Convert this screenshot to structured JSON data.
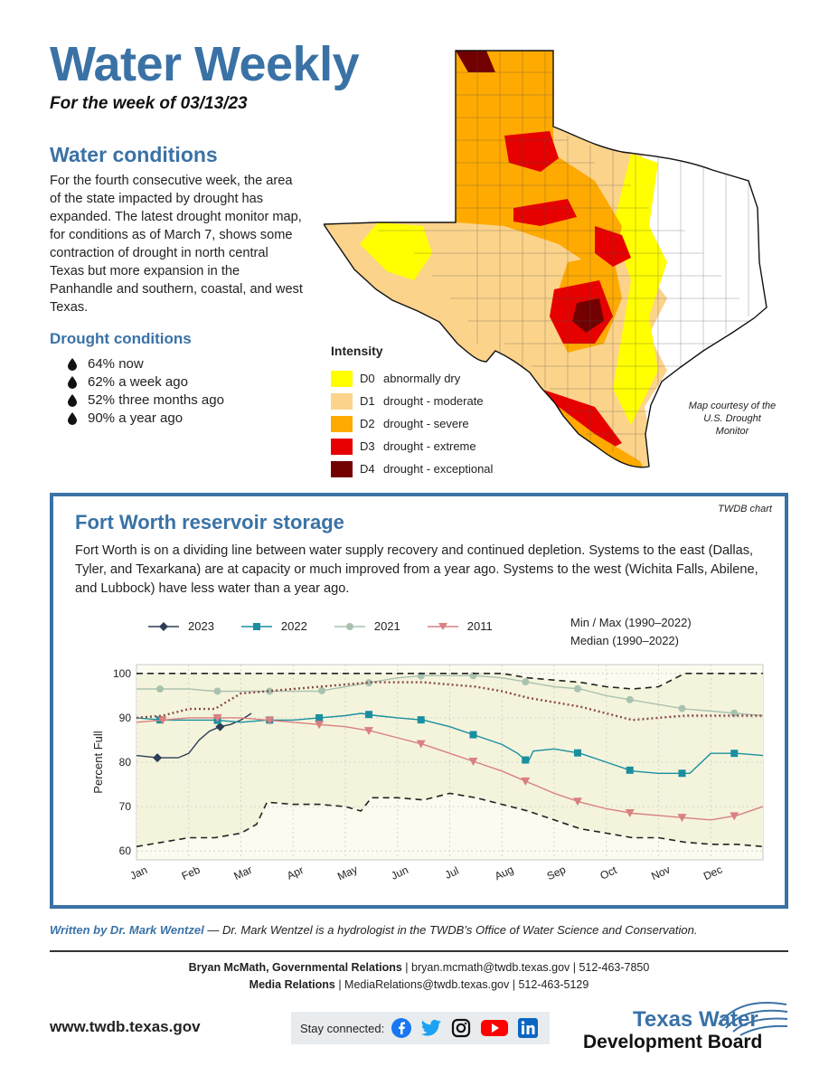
{
  "header": {
    "title": "Water Weekly",
    "subtitle": "For the week of 03/13/23"
  },
  "water_conditions": {
    "heading": "Water conditions",
    "body": "For the fourth consecutive week, the area of the state impacted by drought has expanded. The latest drought monitor map, for conditions as of March 7, shows some contraction of drought in north central Texas but more expansion in the Panhandle and southern, coastal, and west Texas."
  },
  "drought_conditions": {
    "heading": "Drought conditions",
    "items": [
      "64% now",
      "62% a week ago",
      "52% three months ago",
      "90% a year ago"
    ]
  },
  "map": {
    "legend_title": "Intensity",
    "legend": [
      {
        "code": "D0",
        "label": "abnormally dry",
        "color": "#ffff00"
      },
      {
        "code": "D1",
        "label": "drought - moderate",
        "color": "#fcd38a"
      },
      {
        "code": "D2",
        "label": "drought - severe",
        "color": "#ffaa00"
      },
      {
        "code": "D3",
        "label": "drought - extreme",
        "color": "#e60000"
      },
      {
        "code": "D4",
        "label": "drought - exceptional",
        "color": "#730000"
      }
    ],
    "credit": "Map courtesy of the U.S. Drought Monitor"
  },
  "reservoir": {
    "chart_source": "TWDB chart",
    "heading": "Fort Worth reservoir storage",
    "body": "Fort Worth is on a dividing line between water supply recovery and continued depletion. Systems to the east (Dallas, Tyler, and Texarkana) are at capacity or much improved from a year ago. Systems to the west (Wichita Falls, Abilene, and Lubbock) have less water than a year ago.",
    "minmax_label": "Min / Max (1990–2022)",
    "median_label": "Median (1990–2022)"
  },
  "chart_data": {
    "type": "line",
    "title": "",
    "xlabel": "",
    "ylabel": "Percent Full",
    "ylim": [
      58,
      102
    ],
    "x_ticks": [
      "Jan",
      "Feb",
      "Mar",
      "Apr",
      "May",
      "Jun",
      "Jul",
      "Aug",
      "Sep",
      "Oct",
      "Nov",
      "Dec"
    ],
    "y_ticks": [
      60,
      70,
      80,
      90,
      100
    ],
    "xlim": [
      0,
      12
    ],
    "series": [
      {
        "name": "2023",
        "color": "#2c3e55",
        "marker": "diamond",
        "x": [
          0,
          0.4,
          0.8,
          1.0,
          1.2,
          1.4,
          1.6,
          1.8,
          2.0,
          2.2
        ],
        "y": [
          81.5,
          81,
          81,
          82,
          85,
          87,
          88,
          88.5,
          89.5,
          91
        ],
        "markers_at": [
          0.4,
          1.6
        ]
      },
      {
        "name": "2022",
        "color": "#1a8fa0",
        "marker": "square",
        "x": [
          0,
          0.5,
          1,
          1.5,
          2,
          2.5,
          3,
          3.5,
          4,
          4.3,
          4.6,
          5,
          5.5,
          6,
          6.5,
          7,
          7.3,
          7.5,
          7.6,
          8,
          8.5,
          9,
          9.5,
          10,
          10.5,
          10.6,
          11,
          11.5,
          12
        ],
        "y": [
          90,
          89.5,
          89.5,
          89.5,
          89,
          89.5,
          89.5,
          90,
          90.5,
          91,
          90.5,
          90,
          89.5,
          88,
          86,
          84,
          82,
          80,
          82.5,
          83,
          82,
          80,
          78,
          77.5,
          77.5,
          77.5,
          82,
          82,
          81.5
        ],
        "markers_at": [
          0.45,
          1.55,
          2.55,
          3.5,
          4.45,
          5.45,
          6.45,
          7.45,
          8.45,
          9.45,
          10.45,
          11.45
        ]
      },
      {
        "name": "2021",
        "color": "#a9c2b0",
        "marker": "circle",
        "x": [
          0,
          0.5,
          1,
          1.5,
          2,
          2.5,
          3,
          3.5,
          4,
          4.5,
          5,
          5.5,
          6,
          6.5,
          7,
          7.5,
          8,
          8.5,
          9,
          9.5,
          10,
          10.5,
          11,
          11.5,
          12
        ],
        "y": [
          96.5,
          96.5,
          96.5,
          96,
          96,
          96,
          96,
          96,
          97,
          98,
          99,
          99.5,
          99.5,
          99.5,
          99,
          98,
          97,
          96.5,
          95,
          94,
          93,
          92,
          91.5,
          91,
          90.5
        ],
        "markers_at": [
          0.45,
          1.55,
          2.55,
          3.55,
          4.45,
          5.45,
          6.45,
          7.45,
          8.45,
          9.45,
          10.45,
          11.45
        ]
      },
      {
        "name": "2011",
        "color": "#d98080",
        "marker": "triangle-down",
        "x": [
          0,
          0.5,
          1,
          1.5,
          2,
          2.5,
          3,
          3.5,
          4,
          4.5,
          5,
          5.5,
          6,
          6.5,
          7,
          7.5,
          8,
          8.5,
          9,
          9.5,
          10,
          10.5,
          11,
          11.5,
          12
        ],
        "y": [
          89,
          89.5,
          90,
          90,
          90,
          89.5,
          89,
          88.5,
          88,
          87,
          85.5,
          84,
          82,
          80,
          78,
          75.5,
          73,
          71,
          69.5,
          68.5,
          68,
          67.5,
          67,
          68,
          70
        ],
        "markers_at": [
          0.5,
          1.55,
          2.55,
          3.5,
          4.45,
          5.45,
          6.45,
          7.45,
          8.45,
          9.45,
          10.45,
          11.45
        ]
      },
      {
        "name": "Min (1990–2022)",
        "color": "#222222",
        "style": "dashed",
        "x": [
          0,
          0.5,
          1,
          1.5,
          2,
          2.3,
          2.5,
          3,
          3.5,
          4,
          4.3,
          4.5,
          5,
          5.5,
          6,
          6.5,
          7,
          7.5,
          8,
          8.5,
          9,
          9.5,
          10,
          10.5,
          11,
          11.5,
          12
        ],
        "y": [
          61,
          62,
          63,
          63,
          64,
          66,
          71,
          70.5,
          70.5,
          70,
          69,
          72,
          72,
          71.5,
          73,
          72,
          70.5,
          69,
          67,
          65,
          64,
          63,
          63,
          62,
          61.5,
          61.5,
          61
        ],
        "markers_at": []
      },
      {
        "name": "Max (1990–2022)",
        "color": "#222222",
        "style": "dashed",
        "x": [
          0,
          1,
          2,
          3,
          4,
          5,
          6,
          7,
          7.5,
          8,
          8.5,
          9,
          9.5,
          10,
          10.5,
          11,
          12
        ],
        "y": [
          100,
          100,
          100,
          100,
          100,
          100,
          100,
          100,
          99,
          98.5,
          98,
          97,
          96.5,
          97,
          100,
          100,
          100
        ],
        "markers_at": []
      },
      {
        "name": "Median (1990–2022)",
        "color": "#8a4a4a",
        "style": "dotted",
        "x": [
          0,
          0.5,
          1,
          1.5,
          2,
          2.5,
          3,
          3.5,
          4,
          4.5,
          5,
          5.5,
          6,
          6.5,
          7,
          7.5,
          8,
          8.5,
          9,
          9.5,
          10,
          10.5,
          11,
          11.5,
          12
        ],
        "y": [
          90,
          90.5,
          92,
          92,
          95.5,
          96,
          96.5,
          97,
          97.5,
          98,
          98,
          98,
          97.5,
          97,
          96,
          94.5,
          93.5,
          92.5,
          91,
          89.5,
          90,
          90.5,
          90.5,
          90.5,
          90.5
        ],
        "markers_at": []
      }
    ],
    "legend_position": "top",
    "grid": true
  },
  "footer": {
    "written_by": "Written by Dr. Mark Wentzel",
    "written_desc": " — Dr. Mark Wentzel is a hydrologist in the TWDB’s Office of Water Science and Conservation.",
    "contact1_name": "Bryan McMath, Governmental Relations",
    "contact1_rest": "  |  bryan.mcmath@twdb.texas.gov  |  512-463-7850",
    "contact2_name": "Media Relations",
    "contact2_rest": "  |  MediaRelations@twdb.texas.gov  |  512-463-5129",
    "website": "www.twdb.texas.gov",
    "stay_connected": "Stay connected:",
    "logo_line1": "Texas Water",
    "logo_line2": "Development Board"
  }
}
